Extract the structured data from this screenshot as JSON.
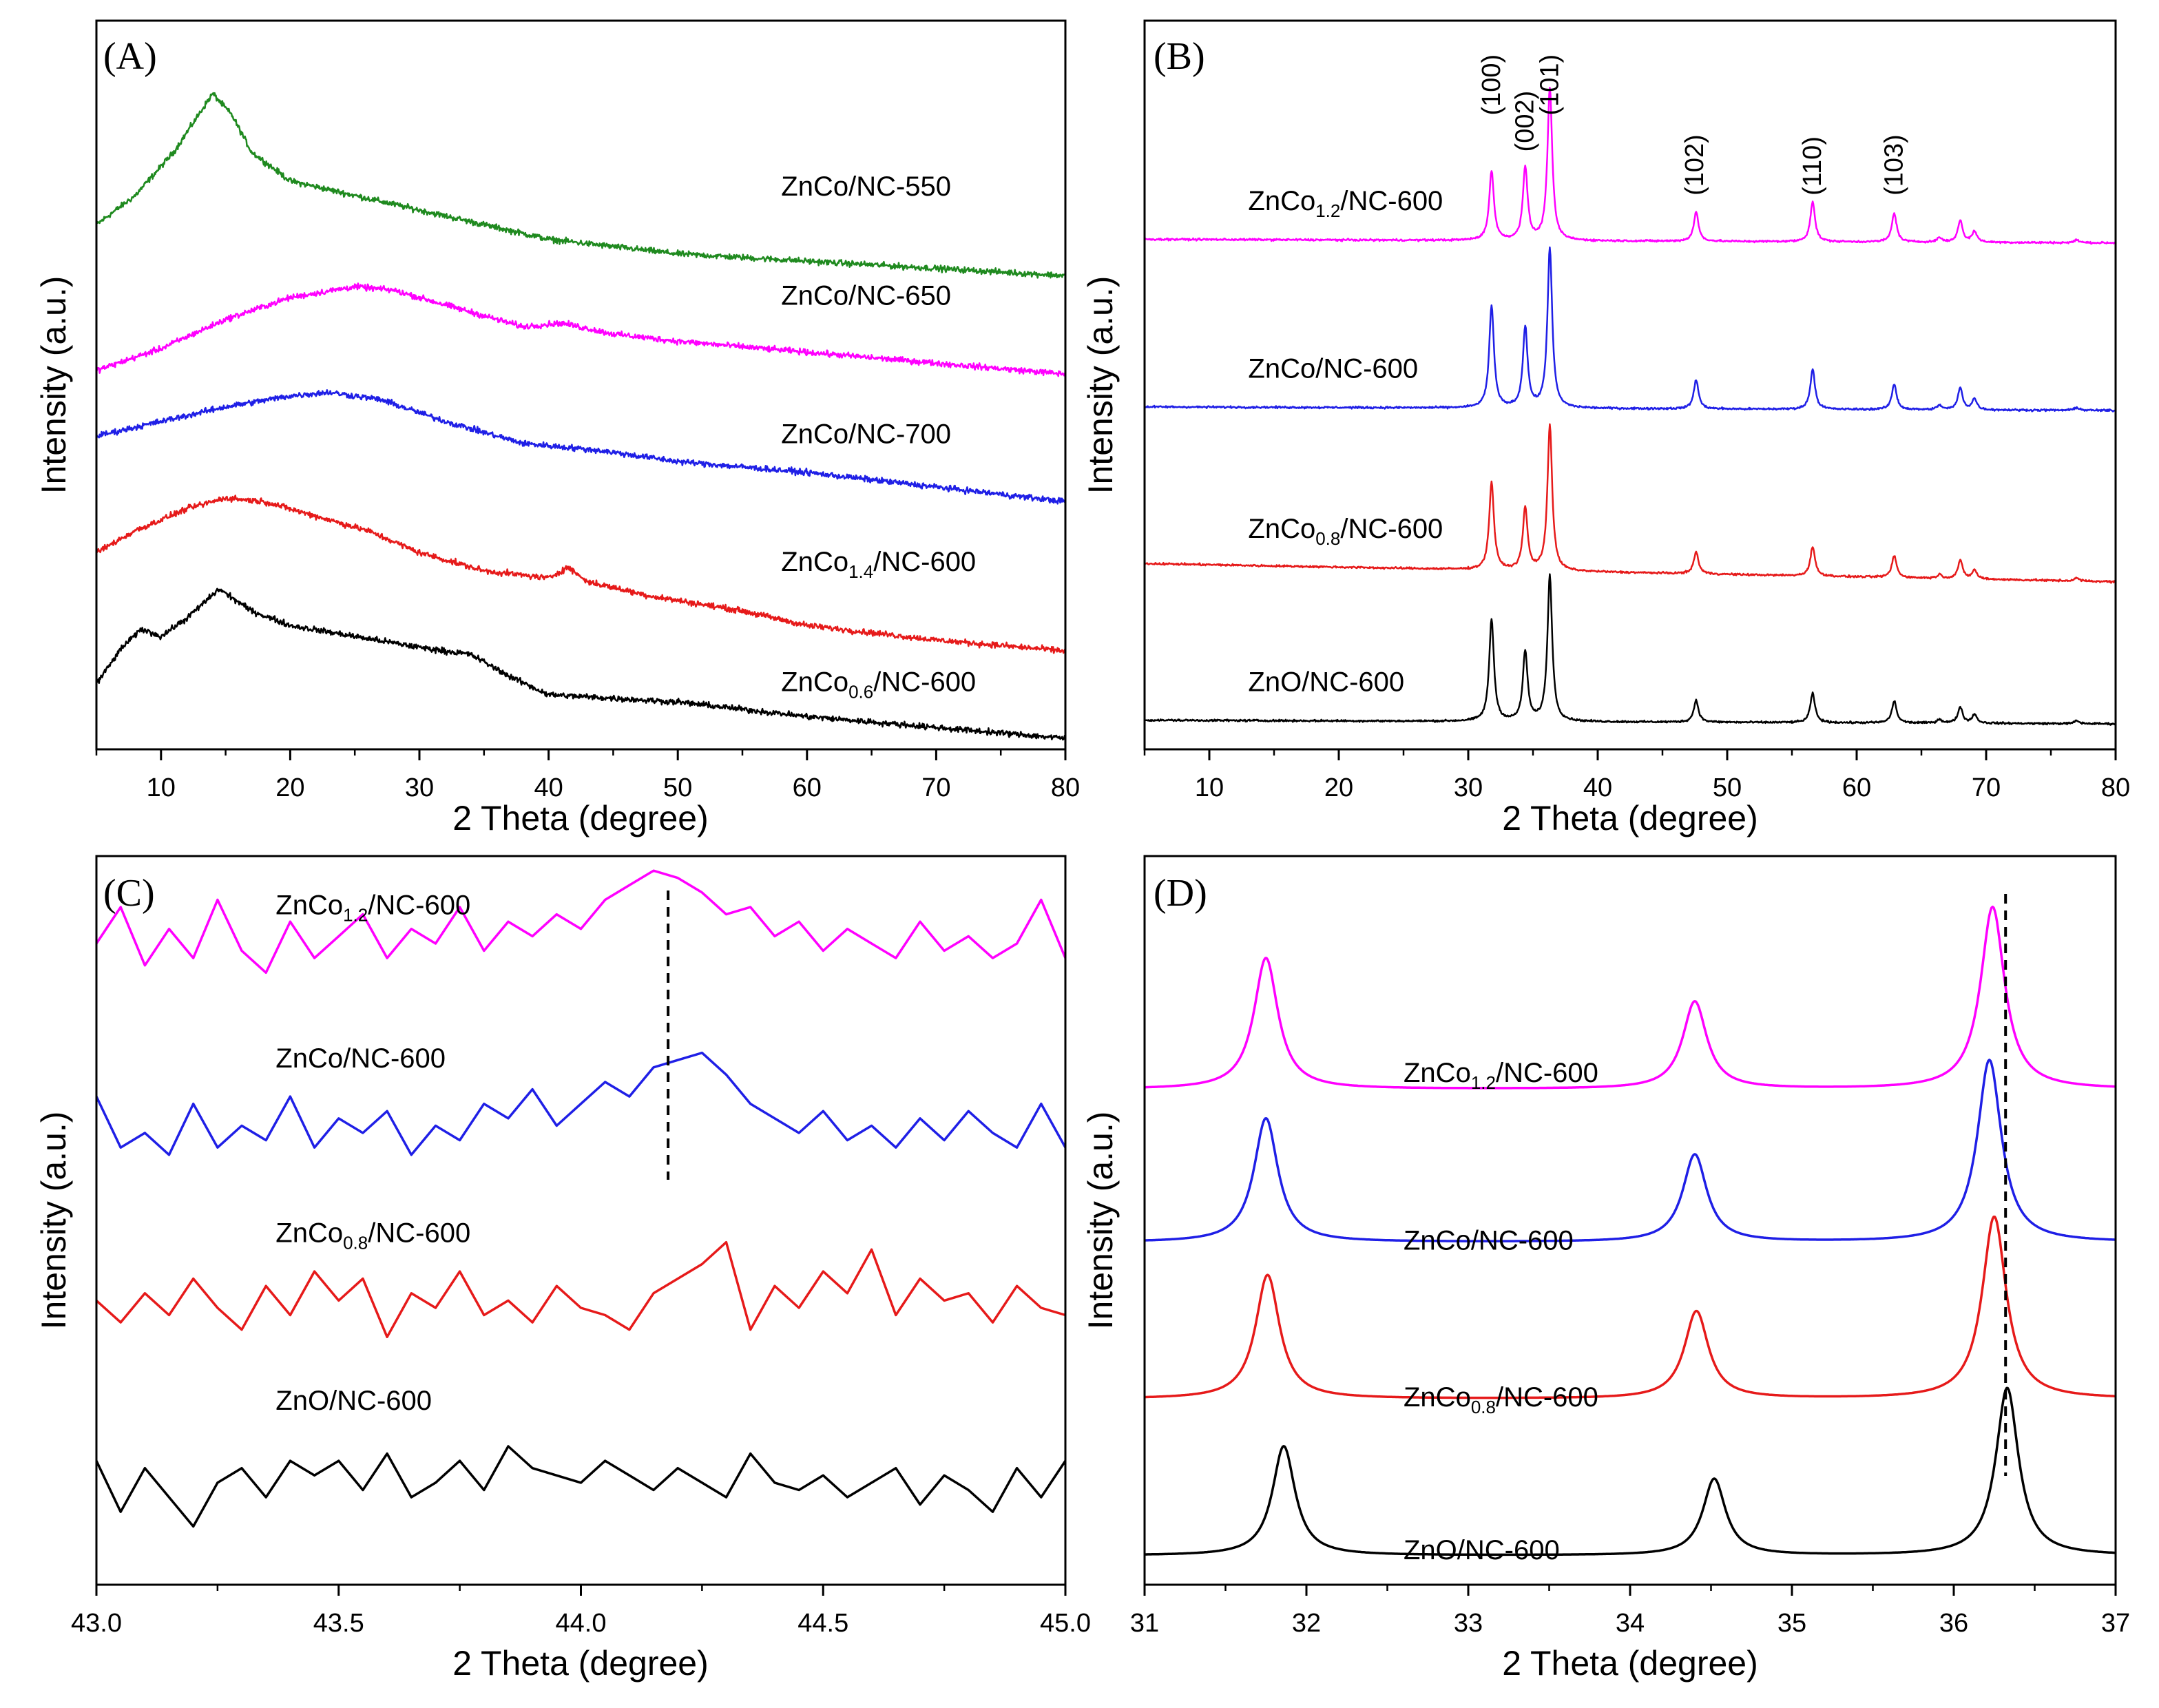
{
  "chart_data": [
    {
      "id": "A",
      "type": "line",
      "panel_label": "(A)",
      "xlabel": "2 Theta (degree)",
      "ylabel": "Intensity (a.u.)",
      "xlim": [
        5,
        80
      ],
      "ylim": [
        0,
        1
      ],
      "xticks": [
        "10",
        "20",
        "30",
        "40",
        "50",
        "60",
        "70",
        "80"
      ],
      "xtick_values": [
        10,
        20,
        30,
        40,
        50,
        60,
        70,
        80
      ],
      "series": [
        {
          "name": "ZnCo/NC-550",
          "color": "#1f8a1f",
          "noise": 0.006,
          "x": [
            5,
            8,
            11,
            12.5,
            14,
            15.5,
            17,
            20,
            25,
            30,
            35,
            40,
            50,
            60,
            70,
            80
          ],
          "y": [
            0.72,
            0.76,
            0.82,
            0.86,
            0.9,
            0.87,
            0.82,
            0.78,
            0.76,
            0.74,
            0.72,
            0.7,
            0.68,
            0.67,
            0.66,
            0.65
          ]
        },
        {
          "name": "ZnCo/NC-650",
          "color": "#ff00ff",
          "noise": 0.006,
          "x": [
            5,
            10,
            15,
            20,
            25,
            28,
            32,
            38,
            41,
            45,
            50,
            60,
            70,
            80
          ],
          "y": [
            0.52,
            0.55,
            0.59,
            0.62,
            0.635,
            0.63,
            0.61,
            0.58,
            0.585,
            0.57,
            0.56,
            0.545,
            0.53,
            0.515
          ]
        },
        {
          "name": "ZnCo/NC-700",
          "color": "#1f1fe6",
          "noise": 0.006,
          "x": [
            5,
            10,
            15,
            20,
            23,
            27,
            32,
            38,
            44,
            50,
            60,
            70,
            80
          ],
          "y": [
            0.43,
            0.45,
            0.47,
            0.485,
            0.49,
            0.48,
            0.45,
            0.42,
            0.41,
            0.395,
            0.38,
            0.36,
            0.34
          ]
        },
        {
          "name": "ZnCo1.4/NC-600",
          "color": "#e61a1a",
          "noise": 0.006,
          "x": [
            5,
            8,
            12,
            15,
            18,
            22,
            26,
            30,
            35,
            40,
            41.5,
            43,
            48,
            55,
            60,
            70,
            80
          ],
          "y": [
            0.27,
            0.3,
            0.33,
            0.345,
            0.34,
            0.32,
            0.3,
            0.27,
            0.245,
            0.235,
            0.25,
            0.23,
            0.21,
            0.19,
            0.17,
            0.15,
            0.135
          ]
        },
        {
          "name": "ZnCo0.6/NC-600",
          "color": "#000000",
          "noise": 0.006,
          "x": [
            5,
            7,
            8.5,
            10,
            12,
            14.5,
            17,
            20,
            25,
            30,
            34,
            37,
            40,
            45,
            50,
            60,
            70,
            80
          ],
          "y": [
            0.09,
            0.14,
            0.165,
            0.155,
            0.18,
            0.22,
            0.19,
            0.17,
            0.155,
            0.14,
            0.13,
            0.1,
            0.075,
            0.07,
            0.065,
            0.045,
            0.03,
            0.015
          ]
        }
      ],
      "label_text": [
        {
          "prefix": "ZnCo/NC-550",
          "sub": "",
          "suffix": ""
        },
        {
          "prefix": "ZnCo/NC-650",
          "sub": "",
          "suffix": ""
        },
        {
          "prefix": "ZnCo/NC-700",
          "sub": "",
          "suffix": ""
        },
        {
          "prefix": "ZnCo",
          "sub": "1.4",
          "suffix": "/NC-600"
        },
        {
          "prefix": "ZnCo",
          "sub": "0.6",
          "suffix": "/NC-600"
        }
      ],
      "label_pos": [
        [
          58,
          0.76
        ],
        [
          58,
          0.61
        ],
        [
          58,
          0.42
        ],
        [
          58,
          0.245
        ],
        [
          58,
          0.08
        ]
      ]
    },
    {
      "id": "B",
      "type": "line",
      "panel_label": "(B)",
      "xlabel": "2 Theta (degree)",
      "ylabel": "Intensity (a.u.)",
      "xlim": [
        5,
        80
      ],
      "ylim": [
        0,
        1
      ],
      "xticks": [
        "10",
        "20",
        "30",
        "40",
        "50",
        "60",
        "70",
        "80"
      ],
      "xtick_values": [
        10,
        20,
        30,
        40,
        50,
        60,
        70,
        80
      ],
      "peak_labels": [
        {
          "text": "(100)",
          "x": 31.8,
          "y": 0.87
        },
        {
          "text": "(002)",
          "x": 34.4,
          "y": 0.82
        },
        {
          "text": "(101)",
          "x": 36.3,
          "y": 0.87
        },
        {
          "text": "(102)",
          "x": 47.5,
          "y": 0.76
        },
        {
          "text": "(110)",
          "x": 56.6,
          "y": 0.76
        },
        {
          "text": "(103)",
          "x": 62.9,
          "y": 0.76
        }
      ],
      "peaks_x": [
        31.8,
        34.4,
        36.3,
        47.6,
        56.6,
        62.9,
        66.4,
        68.0,
        69.1,
        77.0
      ],
      "series": [
        {
          "name": "ZnCo1.2/NC-600",
          "color": "#ff00ff",
          "base": [
            0.7,
            0.695
          ],
          "noise": 0.002,
          "heights": [
            0.095,
            0.1,
            0.21,
            0.04,
            0.055,
            0.04,
            0.006,
            0.03,
            0.015,
            0.004
          ]
        },
        {
          "name": "ZnCo/NC-600",
          "color": "#1f1fe6",
          "base": [
            0.47,
            0.465
          ],
          "noise": 0.002,
          "heights": [
            0.14,
            0.11,
            0.22,
            0.04,
            0.055,
            0.035,
            0.006,
            0.03,
            0.015,
            0.004
          ]
        },
        {
          "name": "ZnCo0.8/NC-600",
          "color": "#e61a1a",
          "base": [
            0.255,
            0.23
          ],
          "noise": 0.002,
          "heights": [
            0.12,
            0.085,
            0.2,
            0.03,
            0.04,
            0.03,
            0.005,
            0.025,
            0.012,
            0.004
          ]
        },
        {
          "name": "ZnO/NC-600",
          "color": "#000000",
          "base": [
            0.04,
            0.035
          ],
          "noise": 0.002,
          "heights": [
            0.14,
            0.095,
            0.2,
            0.03,
            0.04,
            0.03,
            0.005,
            0.022,
            0.012,
            0.004
          ]
        }
      ],
      "label_text": [
        {
          "prefix": "ZnCo",
          "sub": "1.2",
          "suffix": "/NC-600"
        },
        {
          "prefix": "ZnCo/NC-600",
          "sub": "",
          "suffix": ""
        },
        {
          "prefix": "ZnCo",
          "sub": "0.8",
          "suffix": "/NC-600"
        },
        {
          "prefix": "ZnO/NC-600",
          "sub": "",
          "suffix": ""
        }
      ],
      "label_pos": [
        [
          13,
          0.74
        ],
        [
          13,
          0.51
        ],
        [
          13,
          0.29
        ],
        [
          13,
          0.08
        ]
      ]
    },
    {
      "id": "C",
      "type": "line",
      "panel_label": "(C)",
      "xlabel": "2 Theta (degree)",
      "ylabel": "Intensity (a.u.)",
      "xlim": [
        43.0,
        45.0
      ],
      "ylim": [
        0,
        1
      ],
      "xticks": [
        "43.0",
        "43.5",
        "44.0",
        "44.5",
        "45.0"
      ],
      "xtick_values": [
        43.0,
        43.5,
        44.0,
        44.5,
        45.0
      ],
      "dashed_line_x": 44.18,
      "series": [
        {
          "name": "ZnCo1.2/NC-600",
          "color": "#ff00ff",
          "x": [
            43.0,
            43.05,
            43.1,
            43.15,
            43.2,
            43.25,
            43.3,
            43.35,
            43.4,
            43.45,
            43.5,
            43.55,
            43.6,
            43.65,
            43.7,
            43.75,
            43.8,
            43.85,
            43.9,
            43.95,
            44.0,
            44.05,
            44.1,
            44.15,
            44.2,
            44.25,
            44.3,
            44.35,
            44.4,
            44.45,
            44.5,
            44.55,
            44.6,
            44.65,
            44.7,
            44.75,
            44.8,
            44.85,
            44.9,
            44.95,
            45.0
          ],
          "y": [
            0.88,
            0.93,
            0.85,
            0.9,
            0.86,
            0.94,
            0.87,
            0.84,
            0.91,
            0.86,
            0.89,
            0.92,
            0.86,
            0.9,
            0.88,
            0.93,
            0.87,
            0.91,
            0.89,
            0.92,
            0.9,
            0.94,
            0.96,
            0.98,
            0.97,
            0.95,
            0.92,
            0.93,
            0.89,
            0.91,
            0.87,
            0.9,
            0.88,
            0.86,
            0.91,
            0.87,
            0.89,
            0.86,
            0.88,
            0.94,
            0.86
          ]
        },
        {
          "name": "ZnCo/NC-600",
          "color": "#1f1fe6",
          "x": [
            43.0,
            43.05,
            43.1,
            43.15,
            43.2,
            43.25,
            43.3,
            43.35,
            43.4,
            43.45,
            43.5,
            43.55,
            43.6,
            43.65,
            43.7,
            43.75,
            43.8,
            43.85,
            43.9,
            43.95,
            44.0,
            44.05,
            44.1,
            44.15,
            44.2,
            44.25,
            44.3,
            44.35,
            44.4,
            44.45,
            44.5,
            44.55,
            44.6,
            44.65,
            44.7,
            44.75,
            44.8,
            44.85,
            44.9,
            44.95,
            45.0
          ],
          "y": [
            0.67,
            0.6,
            0.62,
            0.59,
            0.66,
            0.6,
            0.63,
            0.61,
            0.67,
            0.6,
            0.64,
            0.62,
            0.65,
            0.59,
            0.63,
            0.61,
            0.66,
            0.64,
            0.68,
            0.63,
            0.66,
            0.69,
            0.67,
            0.71,
            0.72,
            0.73,
            0.7,
            0.66,
            0.64,
            0.62,
            0.65,
            0.61,
            0.63,
            0.6,
            0.64,
            0.61,
            0.65,
            0.62,
            0.6,
            0.66,
            0.6
          ]
        },
        {
          "name": "ZnCo0.8/NC-600",
          "color": "#e61a1a",
          "x": [
            43.0,
            43.05,
            43.1,
            43.15,
            43.2,
            43.25,
            43.3,
            43.35,
            43.4,
            43.45,
            43.5,
            43.55,
            43.6,
            43.65,
            43.7,
            43.75,
            43.8,
            43.85,
            43.9,
            43.95,
            44.0,
            44.05,
            44.1,
            44.15,
            44.2,
            44.25,
            44.3,
            44.35,
            44.4,
            44.45,
            44.5,
            44.55,
            44.6,
            44.65,
            44.7,
            44.75,
            44.8,
            44.85,
            44.9,
            44.95,
            45.0
          ],
          "y": [
            0.39,
            0.36,
            0.4,
            0.37,
            0.42,
            0.38,
            0.35,
            0.41,
            0.37,
            0.43,
            0.39,
            0.42,
            0.34,
            0.4,
            0.38,
            0.43,
            0.37,
            0.39,
            0.36,
            0.41,
            0.38,
            0.37,
            0.35,
            0.4,
            0.42,
            0.44,
            0.47,
            0.35,
            0.41,
            0.38,
            0.43,
            0.4,
            0.46,
            0.37,
            0.42,
            0.39,
            0.4,
            0.36,
            0.41,
            0.38,
            0.37
          ]
        },
        {
          "name": "ZnO/NC-600",
          "color": "#000000",
          "x": [
            43.0,
            43.05,
            43.1,
            43.15,
            43.2,
            43.25,
            43.3,
            43.35,
            43.4,
            43.45,
            43.5,
            43.55,
            43.6,
            43.65,
            43.7,
            43.75,
            43.8,
            43.85,
            43.9,
            43.95,
            44.0,
            44.05,
            44.1,
            44.15,
            44.2,
            44.25,
            44.3,
            44.35,
            44.4,
            44.45,
            44.5,
            44.55,
            44.6,
            44.65,
            44.7,
            44.75,
            44.8,
            44.85,
            44.9,
            44.95,
            45.0
          ],
          "y": [
            0.17,
            0.1,
            0.16,
            0.12,
            0.08,
            0.14,
            0.16,
            0.12,
            0.17,
            0.15,
            0.17,
            0.13,
            0.18,
            0.12,
            0.14,
            0.17,
            0.13,
            0.19,
            0.16,
            0.15,
            0.14,
            0.17,
            0.15,
            0.13,
            0.16,
            0.14,
            0.12,
            0.18,
            0.14,
            0.13,
            0.15,
            0.12,
            0.14,
            0.16,
            0.11,
            0.15,
            0.13,
            0.1,
            0.16,
            0.12,
            0.17
          ]
        }
      ],
      "label_text": [
        {
          "prefix": "ZnCo",
          "sub": "1.2",
          "suffix": "/NC-600"
        },
        {
          "prefix": "ZnCo/NC-600",
          "sub": "",
          "suffix": ""
        },
        {
          "prefix": "ZnCo",
          "sub": "0.8",
          "suffix": "/NC-600"
        },
        {
          "prefix": "ZnO/NC-600",
          "sub": "",
          "suffix": ""
        }
      ],
      "label_pos": [
        [
          43.37,
          0.92
        ],
        [
          43.37,
          0.71
        ],
        [
          43.37,
          0.47
        ],
        [
          43.37,
          0.24
        ]
      ]
    },
    {
      "id": "D",
      "type": "line",
      "panel_label": "(D)",
      "xlabel": "2 Theta (degree)",
      "ylabel": "Intensity (a.u.)",
      "xlim": [
        31,
        37
      ],
      "ylim": [
        0,
        1
      ],
      "xticks": [
        "31",
        "32",
        "33",
        "34",
        "35",
        "36",
        "37"
      ],
      "xtick_values": [
        31,
        32,
        33,
        34,
        35,
        36,
        37
      ],
      "dashed_line_x": 36.32,
      "series": [
        {
          "name": "ZnCo1.2/NC-600",
          "color": "#ff00ff",
          "base": 0.68,
          "peaks_x": [
            31.75,
            34.4,
            36.24
          ],
          "heights": [
            0.18,
            0.12,
            0.25
          ],
          "width": 0.09
        },
        {
          "name": "ZnCo/NC-600",
          "color": "#1f1fe6",
          "base": 0.47,
          "peaks_x": [
            31.75,
            34.4,
            36.22
          ],
          "heights": [
            0.17,
            0.12,
            0.25
          ],
          "width": 0.09
        },
        {
          "name": "ZnCo0.8/NC-600",
          "color": "#e61a1a",
          "base": 0.255,
          "peaks_x": [
            31.76,
            34.41,
            36.25
          ],
          "heights": [
            0.17,
            0.12,
            0.25
          ],
          "width": 0.09
        },
        {
          "name": "ZnO/NC-600",
          "color": "#000000",
          "base": 0.04,
          "peaks_x": [
            31.86,
            34.52,
            36.33
          ],
          "heights": [
            0.15,
            0.105,
            0.23
          ],
          "width": 0.085
        }
      ],
      "label_text": [
        {
          "prefix": "ZnCo",
          "sub": "1.2",
          "suffix": "/NC-600"
        },
        {
          "prefix": "ZnCo/NC-600",
          "sub": "",
          "suffix": ""
        },
        {
          "prefix": "ZnCo",
          "sub": "0.8",
          "suffix": "/NC-600"
        },
        {
          "prefix": "ZnO/NC-600",
          "sub": "",
          "suffix": ""
        }
      ],
      "label_pos": [
        [
          32.6,
          0.69
        ],
        [
          32.6,
          0.46
        ],
        [
          32.6,
          0.245
        ],
        [
          32.6,
          0.035
        ]
      ]
    }
  ]
}
